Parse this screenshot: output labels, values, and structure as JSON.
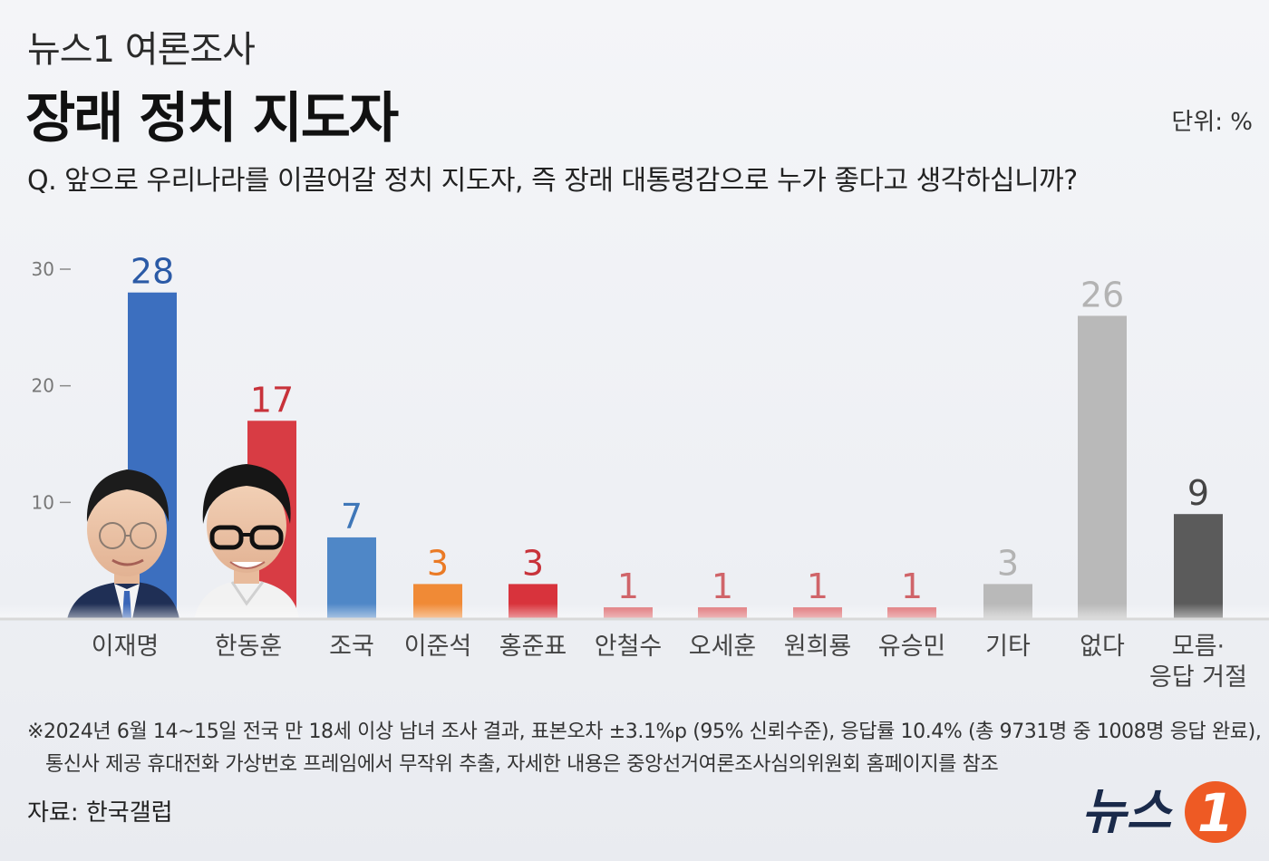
{
  "header": {
    "subtitle": "뉴스1 여론조사",
    "title": "장래 정치 지도자",
    "unit": "단위: %",
    "question": "Q. 앞으로 우리나라를 이끌어갈 정치 지도자, 즉 장래 대통령감으로 누가 좋다고 생각하십니까?"
  },
  "chart_data": {
    "type": "bar",
    "title": "장래 정치 지도자",
    "ylabel": "",
    "xlabel": "",
    "ylim": [
      0,
      30
    ],
    "yticks": [
      "30",
      "20",
      "10"
    ],
    "grid": false,
    "categories": [
      "이재명",
      "한동훈",
      "조국",
      "이준석",
      "홍준표",
      "안철수",
      "오세훈",
      "원희룡",
      "유승민",
      "기타",
      "없다",
      "모름·응답 거절"
    ],
    "category_lines": [
      [
        "이재명"
      ],
      [
        "한동훈"
      ],
      [
        "조국"
      ],
      [
        "이준석"
      ],
      [
        "홍준표"
      ],
      [
        "안철수"
      ],
      [
        "오세훈"
      ],
      [
        "원희룡"
      ],
      [
        "유승민"
      ],
      [
        "기타"
      ],
      [
        "없다"
      ],
      [
        "모름·",
        "응답 거절"
      ]
    ],
    "values": [
      28,
      17,
      7,
      3,
      3,
      1,
      1,
      1,
      1,
      3,
      26,
      9
    ],
    "value_labels": [
      "28",
      "17",
      "7",
      "3",
      "3",
      "1",
      "1",
      "1",
      "1",
      "3",
      "26",
      "9"
    ],
    "bar_colors": [
      "#3c6fbf",
      "#d83c44",
      "#4f87c7",
      "#f08a36",
      "#d8333c",
      "#de6f73",
      "#de6f73",
      "#de6f73",
      "#de6f73",
      "#b9b9b9",
      "#b9b9b9",
      "#5b5b5b"
    ],
    "label_colors": [
      "#2b5aa6",
      "#c8323a",
      "#3f77b8",
      "#ea7a25",
      "#c8323a",
      "#d06469",
      "#d06469",
      "#d06469",
      "#d06469",
      "#b3b3b3",
      "#b3b3b3",
      "#444444"
    ]
  },
  "portraits": [
    "person-photo-lee",
    "person-photo-han"
  ],
  "footer": {
    "note_line1": "※2024년 6월 14~15일 전국 만 18세 이상 남녀 조사 결과, 표본오차 ±3.1%p (95% 신뢰수준), 응답률 10.4% (총 9731명 중 1008명 응답 완료),",
    "note_line2": "통신사 제공 휴대전화 가상번호 프레임에서 무작위 추출, 자세한 내용은 중앙선거여론조사심의위원회 홈페이지를 참조",
    "source": "자료: 한국갤럽",
    "logo_text": "뉴스",
    "logo_mark": "1"
  },
  "colors": {
    "brand_orange": "#ee5a24",
    "baseline": "#d9d9d9"
  }
}
